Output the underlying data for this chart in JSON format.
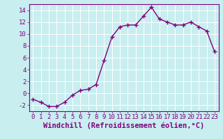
{
  "x": [
    0,
    1,
    2,
    3,
    4,
    5,
    6,
    7,
    8,
    9,
    10,
    11,
    12,
    13,
    14,
    15,
    16,
    17,
    18,
    19,
    20,
    21,
    22,
    23
  ],
  "y": [
    -1,
    -1.5,
    -2.2,
    -2.2,
    -1.5,
    -0.3,
    0.5,
    0.7,
    1.5,
    5.5,
    9.5,
    11.2,
    11.5,
    11.5,
    13.0,
    14.5,
    12.5,
    12.0,
    11.5,
    11.5,
    12.0,
    11.2,
    10.5,
    7.0
  ],
  "line_color": "#800080",
  "marker": "+",
  "markersize": 4,
  "linewidth": 1.0,
  "markeredgewidth": 1.0,
  "xlabel": "Windchill (Refroidissement éolien,°C)",
  "xlim": [
    -0.5,
    23.5
  ],
  "ylim": [
    -3,
    15
  ],
  "yticks": [
    -2,
    0,
    2,
    4,
    6,
    8,
    10,
    12,
    14
  ],
  "xticks": [
    0,
    1,
    2,
    3,
    4,
    5,
    6,
    7,
    8,
    9,
    10,
    11,
    12,
    13,
    14,
    15,
    16,
    17,
    18,
    19,
    20,
    21,
    22,
    23
  ],
  "background_color": "#c8eef0",
  "grid_color": "#ffffff",
  "line_axis_color": "#800080",
  "xlabel_fontsize": 7.5,
  "tick_fontsize": 6.5
}
